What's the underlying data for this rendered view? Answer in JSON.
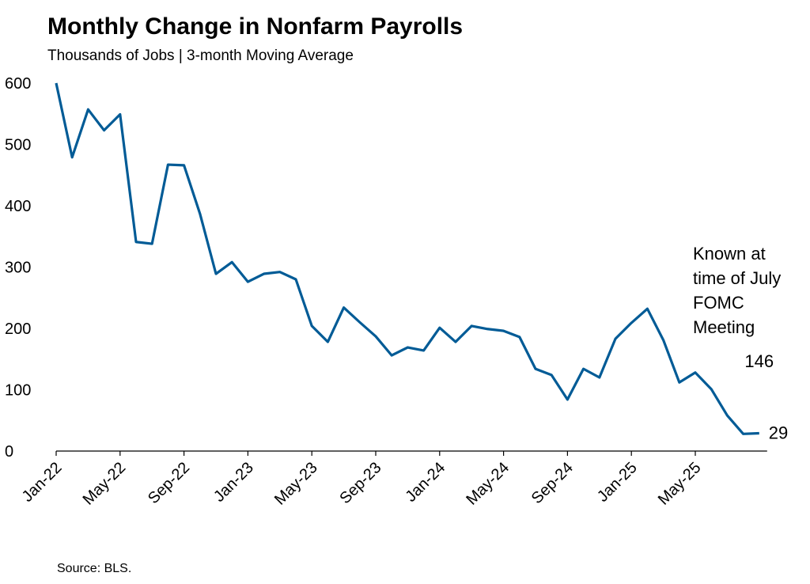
{
  "chart_data": {
    "type": "line",
    "title": "Monthly Change in Nonfarm Payrolls",
    "subtitle": "Thousands of Jobs | 3-month Moving Average",
    "source": "Source: BLS.",
    "categories": [
      "Jan-22",
      null,
      null,
      null,
      "May-22",
      null,
      null,
      null,
      "Sep-22",
      null,
      null,
      null,
      "Jan-23",
      null,
      null,
      null,
      "May-23",
      null,
      null,
      null,
      "Sep-23",
      null,
      null,
      null,
      "Jan-24",
      null,
      null,
      null,
      "May-24",
      null,
      null,
      null,
      "Sep-24",
      null,
      null,
      null,
      "Jan-25",
      null,
      null,
      null,
      "May-25",
      null,
      null,
      null,
      null
    ],
    "series": [
      {
        "name": "3-month Moving Average",
        "color": "#005b96",
        "dashed": false,
        "values": [
          600,
          479,
          557,
          523,
          549,
          341,
          338,
          467,
          466,
          387,
          289,
          308,
          276,
          289,
          292,
          280,
          204,
          178,
          234,
          210,
          187,
          156,
          169,
          164,
          201,
          178,
          204,
          199,
          196,
          186,
          134,
          124,
          84,
          134,
          120,
          183,
          209,
          232,
          181,
          112,
          128,
          101,
          58,
          28,
          29
        ]
      },
      {
        "name": "Known at time of July FOMC Meeting",
        "color": "#00b0f0",
        "dashed": true,
        "values": [
          null,
          null,
          null,
          null,
          null,
          null,
          null,
          null,
          null,
          null,
          null,
          null,
          null,
          null,
          null,
          null,
          null,
          null,
          null,
          null,
          null,
          null,
          null,
          null,
          null,
          null,
          null,
          null,
          null,
          null,
          null,
          null,
          null,
          null,
          null,
          null,
          null,
          null,
          null,
          null,
          128,
          null,
          146,
          null,
          null
        ]
      }
    ],
    "annotation": [
      "Known at",
      "time of July",
      "FOMC",
      "Meeting"
    ],
    "ylim": [
      0,
      600
    ],
    "yticks": [
      0,
      100,
      200,
      300,
      400,
      500,
      600
    ],
    "grid": false
  }
}
